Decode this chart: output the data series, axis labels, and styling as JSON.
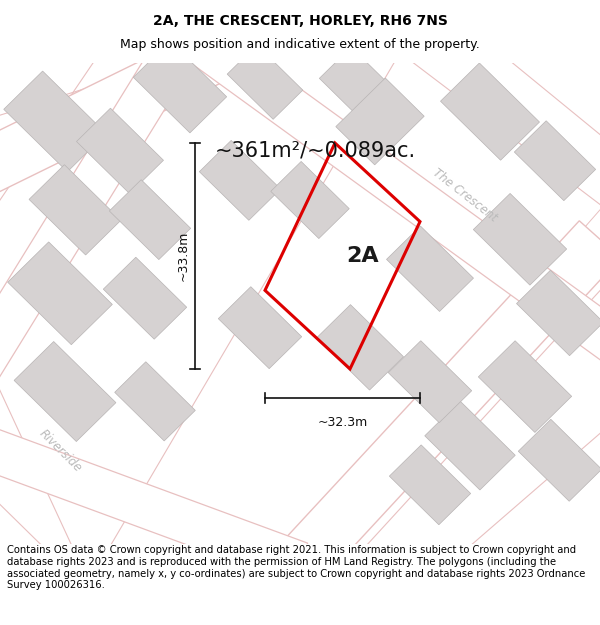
{
  "title": "2A, THE CRESCENT, HORLEY, RH6 7NS",
  "subtitle": "Map shows position and indicative extent of the property.",
  "area_label": "~361m²/~0.089ac.",
  "dim_width": "~32.3m",
  "dim_height": "~33.8m",
  "plot_label": "2A",
  "street_label_crescent": "The Crescent",
  "street_label_riverside": "Riverside",
  "footer": "Contains OS data © Crown copyright and database right 2021. This information is subject to Crown copyright and database rights 2023 and is reproduced with the permission of HM Land Registry. The polygons (including the associated geometry, namely x, y co-ordinates) are subject to Crown copyright and database rights 2023 Ordnance Survey 100026316.",
  "bg_color": "#ffffff",
  "map_bg": "#f2efef",
  "building_color": "#d6d2d2",
  "building_edge": "#b8b4b4",
  "road_color": "#ffffff",
  "road_outline_color": "#e8c0c0",
  "plot_color": "#dd0000",
  "dim_line_color": "#111111",
  "title_fontsize": 10,
  "subtitle_fontsize": 9,
  "area_fontsize": 15,
  "plot_label_fontsize": 16,
  "dim_fontsize": 9,
  "street_fontsize": 8.5,
  "footer_fontsize": 7.2
}
